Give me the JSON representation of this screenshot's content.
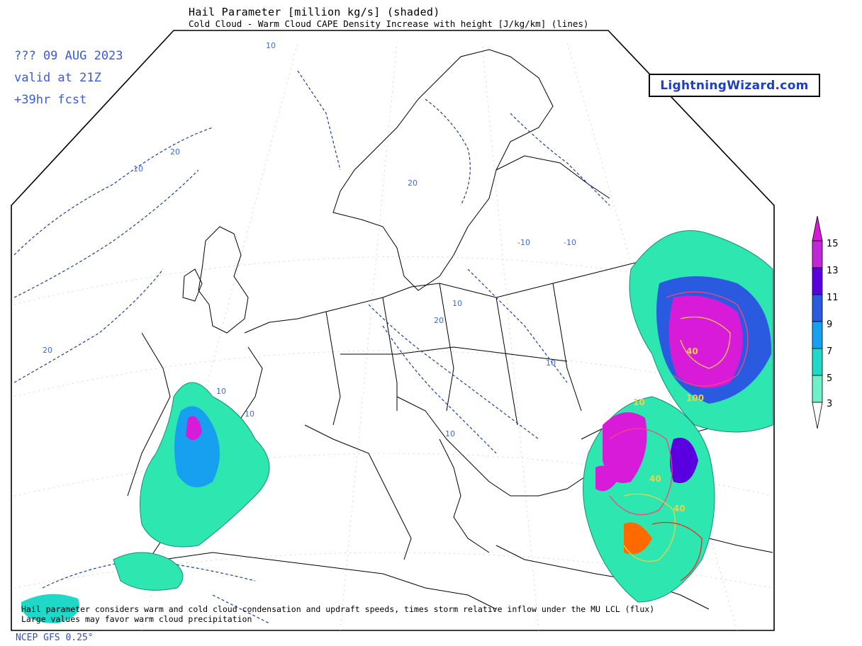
{
  "header": {
    "title": "Hail Parameter [million kg/s] (shaded)",
    "subtitle": "Cold Cloud - Warm Cloud CAPE Density Increase with height [J/kg/km] (lines)"
  },
  "run": {
    "date": "??? 09 AUG 2023",
    "valid": "valid at 21Z",
    "forecast": "+39hr fcst"
  },
  "brand": "LightningWizard.com",
  "footer": "NCEP GFS 0.25°",
  "notes": [
    "Hail parameter considers warm and cold cloud condensation and updraft speeds, times storm relative inflow under the MU LCL (flux)",
    "Large values may favor warm cloud precipitation"
  ],
  "legend": {
    "labels": [
      "15",
      "13",
      "11",
      "9",
      "7",
      "5",
      "3"
    ],
    "colors": [
      "#d81bd8",
      "#a020e8",
      "#5a00e0",
      "#2a5ae0",
      "#18a0f0",
      "#20d8c8",
      "#2ee6b0",
      "#8ef0d0",
      "#ffffff"
    ]
  },
  "contour_labels": [
    "10",
    "20",
    "30",
    "40",
    "60",
    "100",
    "-10"
  ],
  "colors": {
    "title_text": "#000000",
    "run_text": "#3b5bdb",
    "contour_blue": "#1a3fa0",
    "coast": "#000000",
    "magenta": "#e01cc8",
    "teal": "#20c8a8"
  }
}
